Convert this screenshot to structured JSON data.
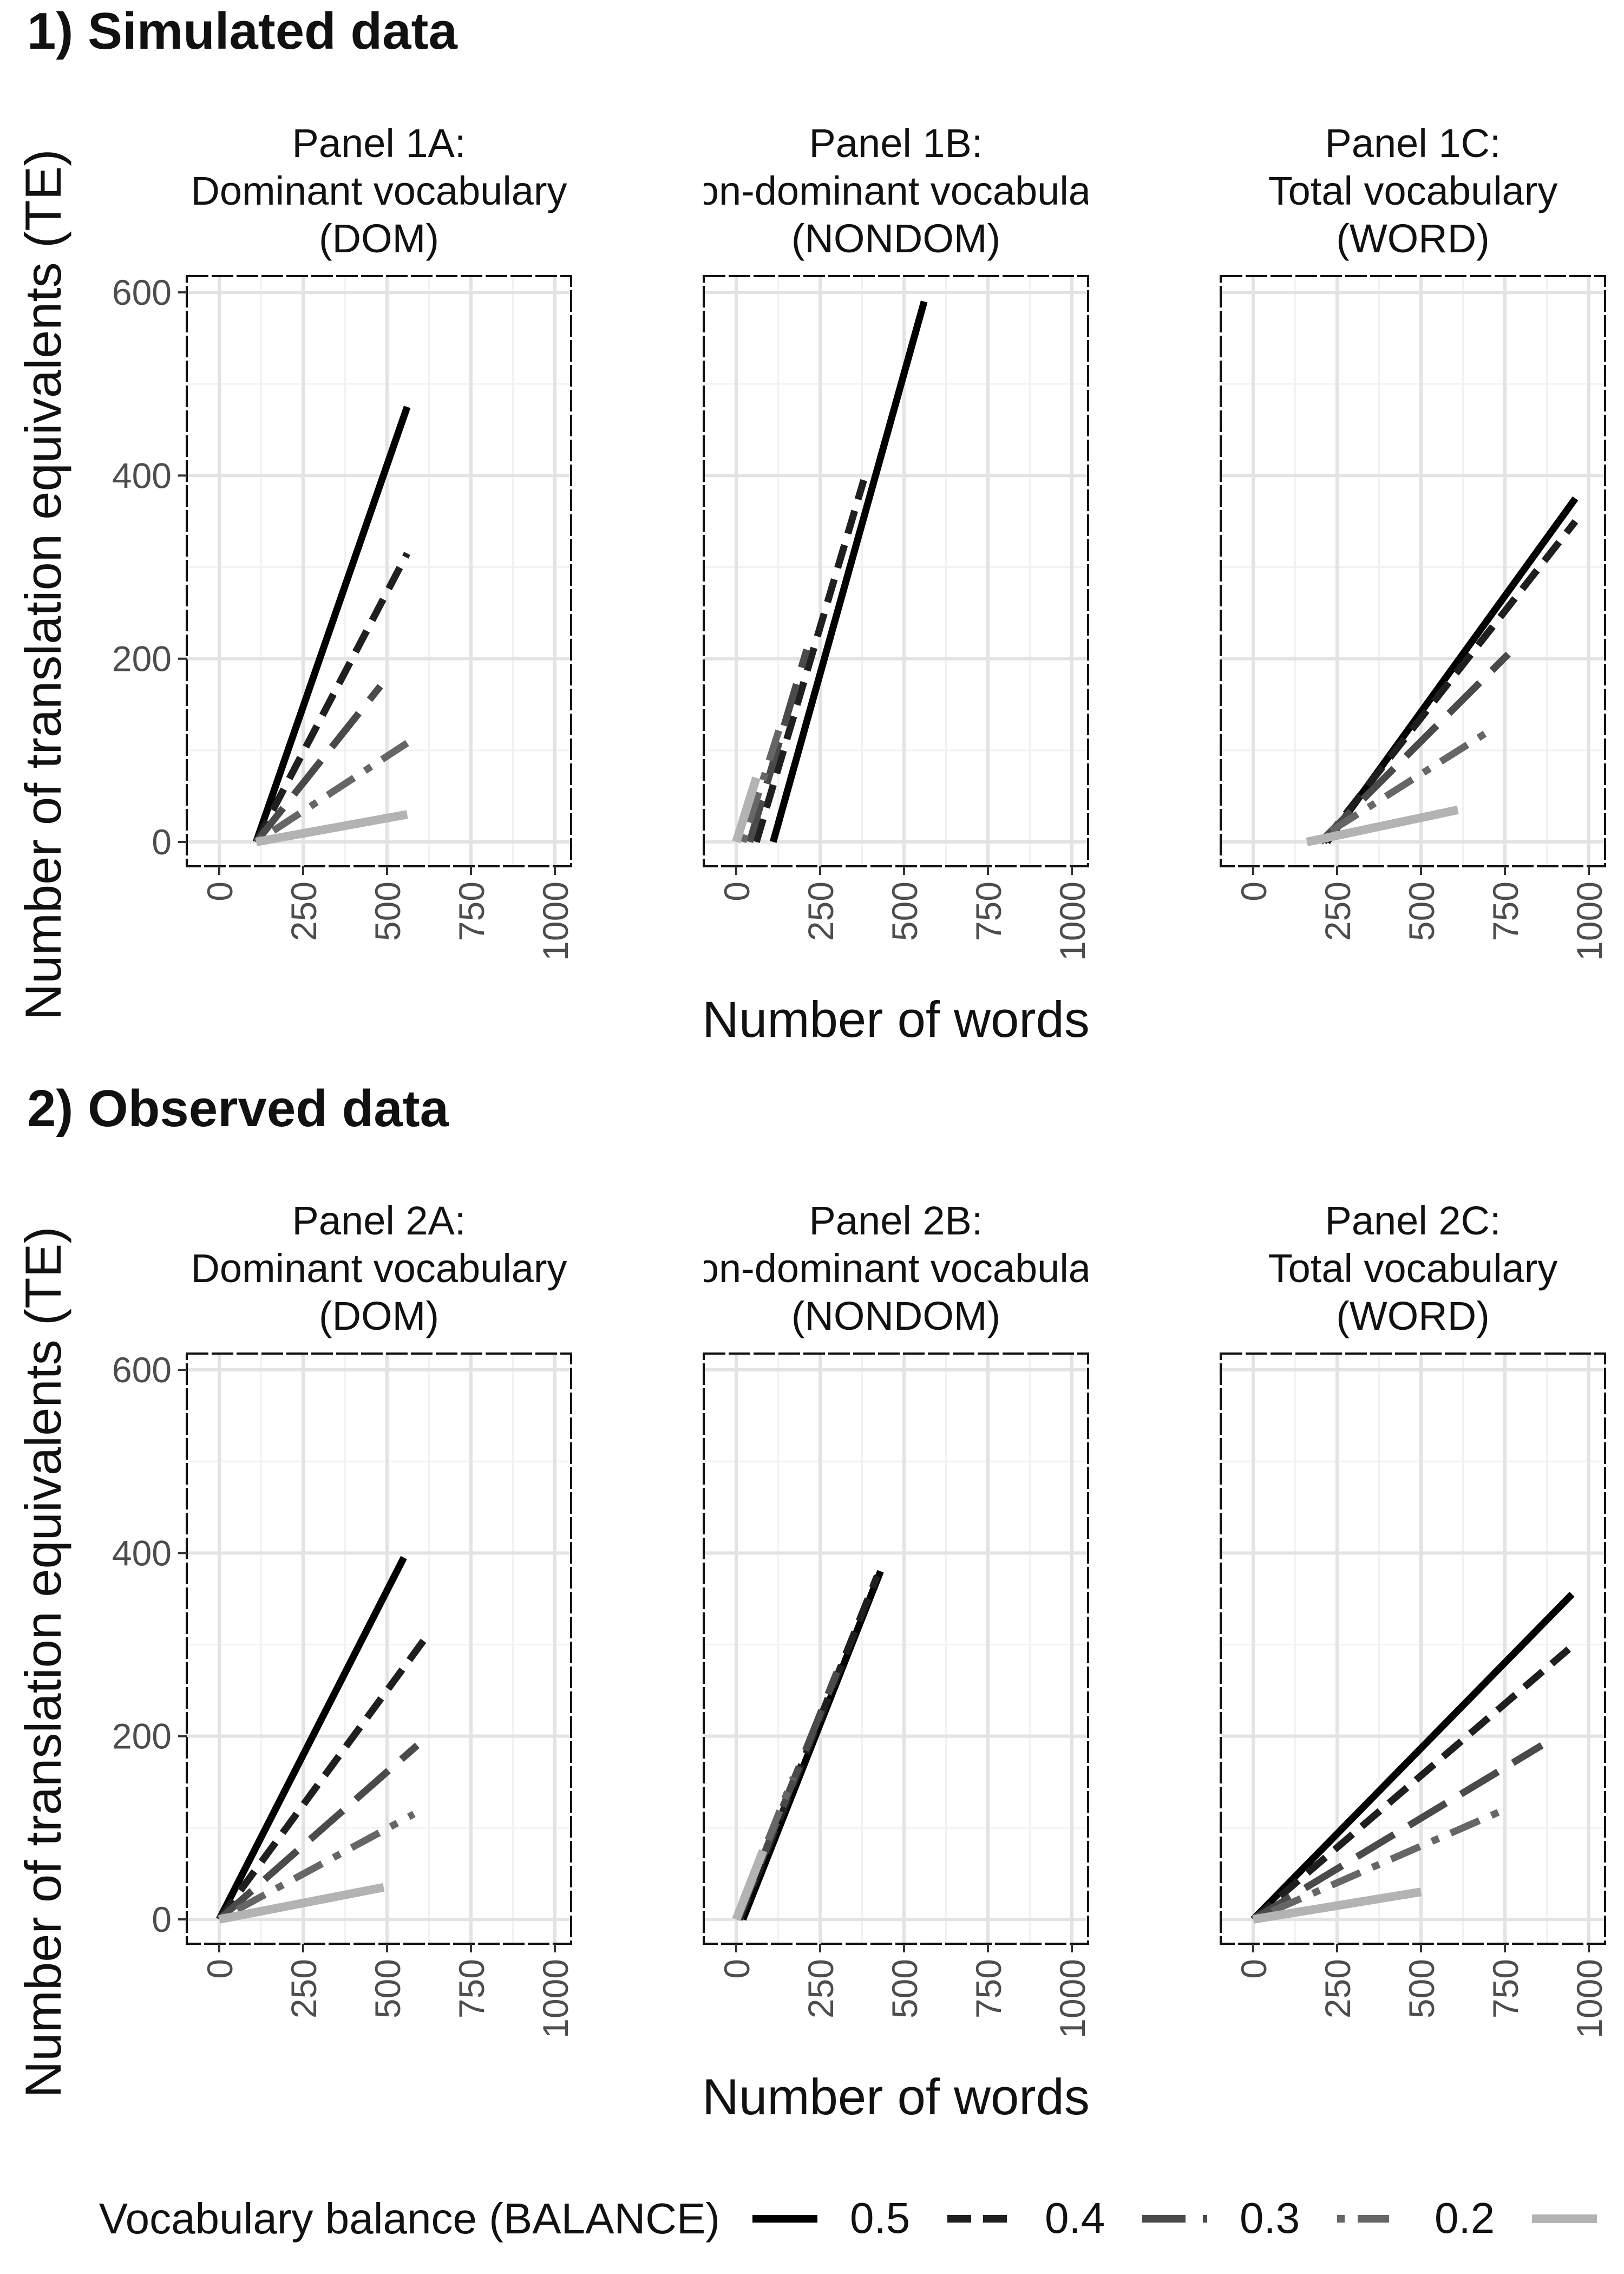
{
  "figure": {
    "section_titles": [
      "1) Simulated data",
      "2) Observed data"
    ],
    "ylabel": "Number of translation equivalents (TE)",
    "xlabel": "Number of words",
    "legend": {
      "title": "Vocabulary balance (BALANCE)",
      "items": [
        {
          "label": "0.5",
          "dash": "solid",
          "color": "#000000"
        },
        {
          "label": "0.4",
          "dash": "dashed",
          "color": "#1f1f1f"
        },
        {
          "label": "0.3",
          "dash": "longdash",
          "color": "#4a4a4a"
        },
        {
          "label": "0.2",
          "dash": "dotdash",
          "color": "#666666"
        },
        {
          "label": "0.1",
          "dash": "solid",
          "color": "#b3b3b3"
        }
      ]
    }
  },
  "chart_data": [
    {
      "type": "line",
      "id": "1A",
      "title": "Panel 1A:\nDominant vocabulary\n(DOM)",
      "xlim": [
        0,
        1000
      ],
      "ylim": [
        0,
        600
      ],
      "x_ticks": [
        "0",
        "250",
        "500",
        "750",
        "1000"
      ],
      "y_ticks": [
        "0",
        "200",
        "400",
        "600"
      ],
      "series": [
        {
          "name": "0.5",
          "x": [
            110,
            560
          ],
          "y": [
            0,
            475
          ]
        },
        {
          "name": "0.4",
          "x": [
            110,
            560
          ],
          "y": [
            0,
            315
          ]
        },
        {
          "name": "0.3",
          "x": [
            110,
            480
          ],
          "y": [
            0,
            170
          ]
        },
        {
          "name": "0.2",
          "x": [
            110,
            560
          ],
          "y": [
            0,
            108
          ]
        },
        {
          "name": "0.1",
          "x": [
            110,
            560
          ],
          "y": [
            0,
            30
          ]
        }
      ]
    },
    {
      "type": "line",
      "id": "1B",
      "title": "Panel 1B:\nNon-dominant vocabulary\n(NONDOM)",
      "xlim": [
        0,
        1000
      ],
      "ylim": [
        0,
        600
      ],
      "x_ticks": [
        "0",
        "250",
        "500",
        "750",
        "1000"
      ],
      "y_ticks": [
        "0",
        "200",
        "400",
        "600"
      ],
      "series": [
        {
          "name": "0.5",
          "x": [
            110,
            560
          ],
          "y": [
            0,
            590
          ]
        },
        {
          "name": "0.4",
          "x": [
            60,
            380
          ],
          "y": [
            0,
            395
          ]
        },
        {
          "name": "0.3",
          "x": [
            40,
            210
          ],
          "y": [
            0,
            210
          ]
        },
        {
          "name": "0.2",
          "x": [
            20,
            130
          ],
          "y": [
            0,
            125
          ]
        },
        {
          "name": "0.1",
          "x": [
            0,
            60
          ],
          "y": [
            0,
            70
          ]
        }
      ]
    },
    {
      "type": "line",
      "id": "1C",
      "title": "Panel 1C:\nTotal vocabulary\n(WORD)",
      "xlim": [
        0,
        1000
      ],
      "ylim": [
        0,
        600
      ],
      "x_ticks": [
        "0",
        "250",
        "500",
        "750",
        "1000"
      ],
      "y_ticks": [
        "0",
        "200",
        "400",
        "600"
      ],
      "series": [
        {
          "name": "0.5",
          "x": [
            220,
            960
          ],
          "y": [
            0,
            375
          ]
        },
        {
          "name": "0.4",
          "x": [
            210,
            960
          ],
          "y": [
            0,
            350
          ]
        },
        {
          "name": "0.3",
          "x": [
            200,
            760
          ],
          "y": [
            0,
            205
          ]
        },
        {
          "name": "0.2",
          "x": [
            180,
            720
          ],
          "y": [
            0,
            125
          ]
        },
        {
          "name": "0.1",
          "x": [
            160,
            610
          ],
          "y": [
            0,
            35
          ]
        }
      ]
    },
    {
      "type": "line",
      "id": "2A",
      "title": "Panel 2A:\nDominant vocabulary\n(DOM)",
      "xlim": [
        0,
        1000
      ],
      "ylim": [
        0,
        600
      ],
      "x_ticks": [
        "0",
        "250",
        "500",
        "750",
        "1000"
      ],
      "y_ticks": [
        "0",
        "200",
        "400",
        "600"
      ],
      "series": [
        {
          "name": "0.5",
          "x": [
            0,
            550
          ],
          "y": [
            0,
            395
          ]
        },
        {
          "name": "0.4",
          "x": [
            0,
            620
          ],
          "y": [
            0,
            310
          ]
        },
        {
          "name": "0.3",
          "x": [
            0,
            590
          ],
          "y": [
            0,
            190
          ]
        },
        {
          "name": "0.2",
          "x": [
            0,
            580
          ],
          "y": [
            0,
            115
          ]
        },
        {
          "name": "0.1",
          "x": [
            0,
            490
          ],
          "y": [
            0,
            35
          ]
        }
      ]
    },
    {
      "type": "line",
      "id": "2B",
      "title": "Panel 2B:\nNon-dominant vocabulary\n(NONDOM)",
      "xlim": [
        0,
        1000
      ],
      "ylim": [
        0,
        600
      ],
      "x_ticks": [
        "0",
        "250",
        "500",
        "750",
        "1000"
      ],
      "y_ticks": [
        "0",
        "200",
        "400",
        "600"
      ],
      "series": [
        {
          "name": "0.5",
          "x": [
            20,
            430
          ],
          "y": [
            0,
            380
          ]
        },
        {
          "name": "0.4",
          "x": [
            10,
            420
          ],
          "y": [
            0,
            375
          ]
        },
        {
          "name": "0.3",
          "x": [
            5,
            300
          ],
          "y": [
            0,
            270
          ]
        },
        {
          "name": "0.2",
          "x": [
            0,
            170
          ],
          "y": [
            0,
            155
          ]
        },
        {
          "name": "0.1",
          "x": [
            0,
            80
          ],
          "y": [
            0,
            75
          ]
        }
      ]
    },
    {
      "type": "line",
      "id": "2C",
      "title": "Panel 2C:\nTotal vocabulary\n(WORD)",
      "xlim": [
        0,
        1000
      ],
      "ylim": [
        0,
        600
      ],
      "x_ticks": [
        "0",
        "250",
        "500",
        "750",
        "1000"
      ],
      "y_ticks": [
        "0",
        "200",
        "400",
        "600"
      ],
      "series": [
        {
          "name": "0.5",
          "x": [
            0,
            950
          ],
          "y": [
            0,
            355
          ]
        },
        {
          "name": "0.4",
          "x": [
            0,
            940
          ],
          "y": [
            0,
            295
          ]
        },
        {
          "name": "0.3",
          "x": [
            0,
            860
          ],
          "y": [
            0,
            190
          ]
        },
        {
          "name": "0.2",
          "x": [
            0,
            750
          ],
          "y": [
            0,
            120
          ]
        },
        {
          "name": "0.1",
          "x": [
            0,
            500
          ],
          "y": [
            0,
            30
          ]
        }
      ]
    }
  ]
}
